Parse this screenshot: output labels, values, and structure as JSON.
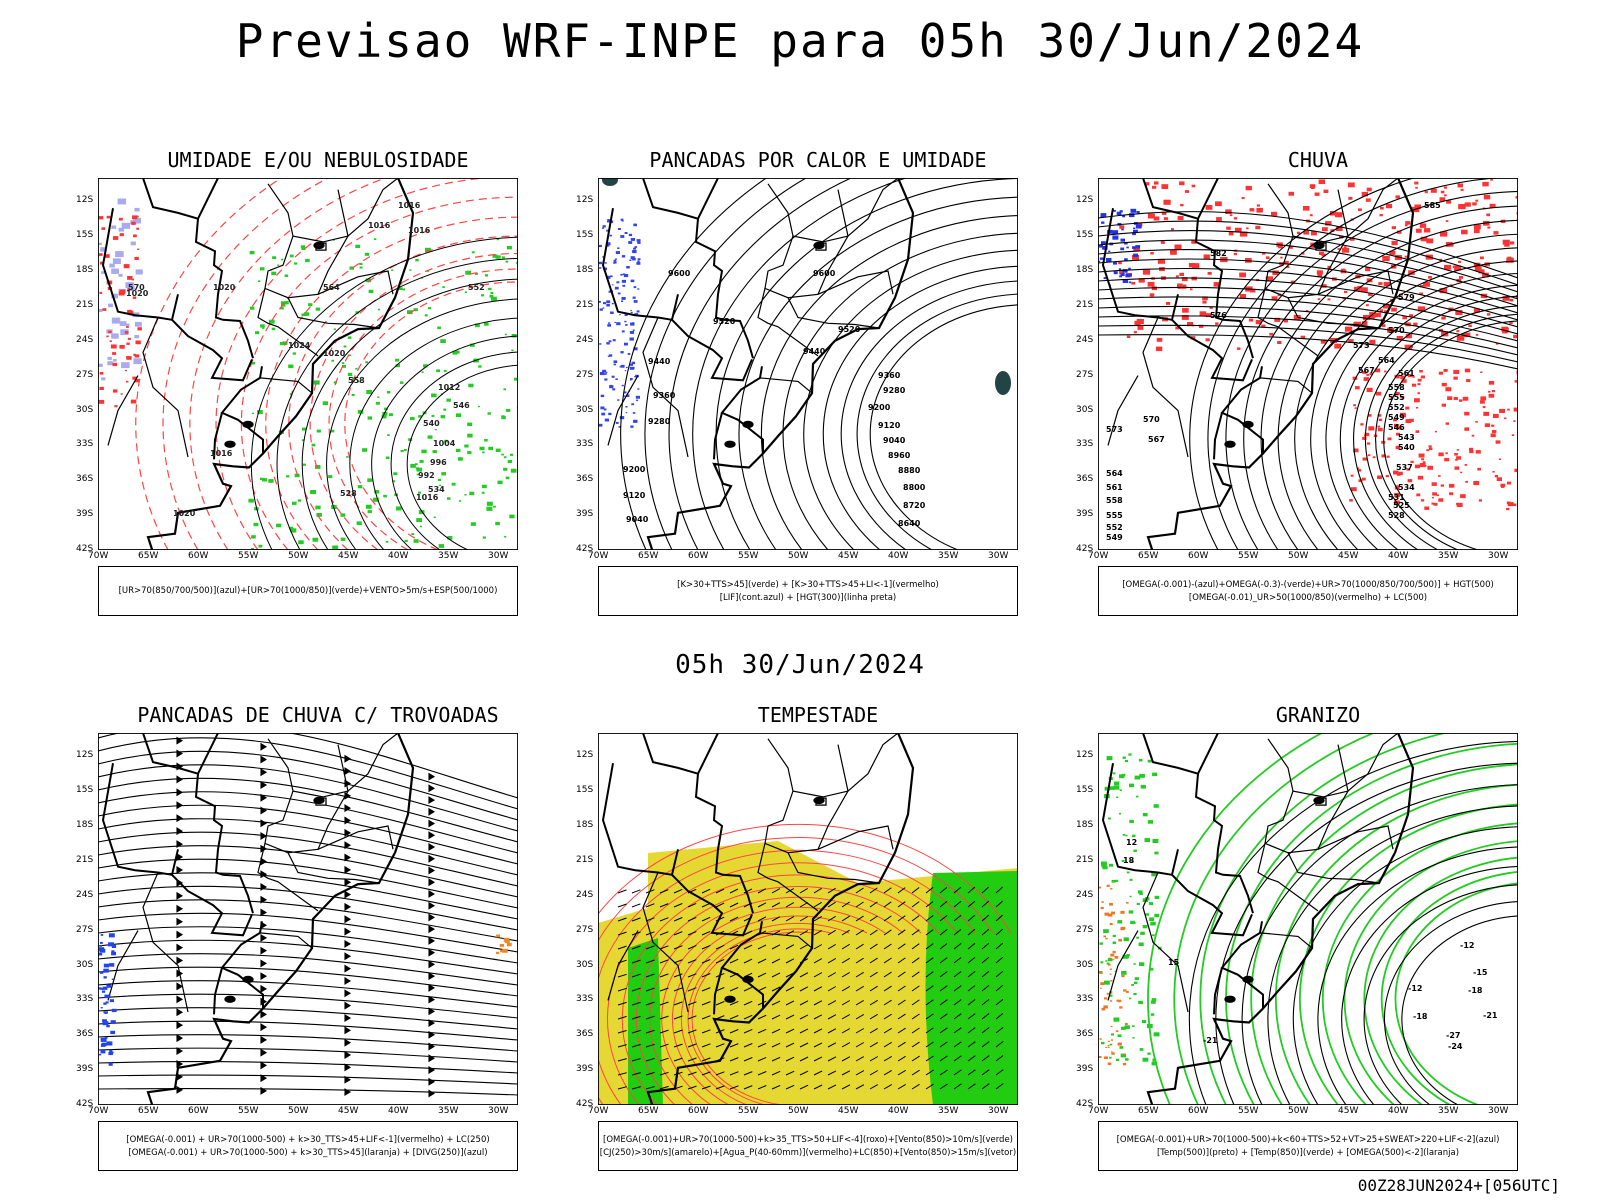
{
  "page": {
    "main_title": "Previsao WRF-INPE  para 05h 30/Jun/2024",
    "mid_title": "05h 30/Jun/2024",
    "footer": "00Z28JUN2024+[056UTC]"
  },
  "axes": {
    "lat_labels": [
      "12S",
      "15S",
      "18S",
      "21S",
      "24S",
      "27S",
      "30S",
      "33S",
      "36S",
      "39S",
      "42S"
    ],
    "lon_labels": [
      "70W",
      "65W",
      "60W",
      "55W",
      "50W",
      "45W",
      "40W",
      "35W",
      "30W"
    ]
  },
  "panels": [
    {
      "id": "umidade",
      "title": "UMIDADE E/OU NEBULOSIDADE",
      "legend": [
        "[UR>70(850/700/500)](azul)+[UR>70(1000/850)](verde)+VENTO>5m/s+ESP(500/1000)"
      ],
      "labels": [
        "1016",
        "1016",
        "1016",
        "1020",
        "1020",
        "1024",
        "1020",
        "1012",
        "1004",
        "996",
        "992",
        "1016",
        "1020",
        "1016",
        "570",
        "564",
        "558",
        "552",
        "546",
        "540",
        "534",
        "528"
      ],
      "colors": {
        "green": "#22cc22",
        "red": "#ff3333",
        "blue": "#aaaaee"
      }
    },
    {
      "id": "pancadas-calor",
      "title": "PANCADAS POR CALOR E UMIDADE",
      "legend": [
        "[K>30+TTS>45](verde) + [K>30+TTS>45+LI<-1](vermelho)",
        "[LIF](cont.azul) + [HGT(300)](linha preta)"
      ],
      "labels": [
        "9600",
        "9600",
        "9520",
        "9520",
        "9440",
        "9440",
        "9360",
        "9360",
        "9280",
        "9280",
        "9200",
        "9200",
        "9120",
        "9120",
        "9040",
        "9040",
        "8960",
        "8880",
        "8800",
        "8720",
        "8640"
      ],
      "colors": {
        "blue": "#3344ee",
        "teal": "#224444"
      }
    },
    {
      "id": "chuva",
      "title": "CHUVA",
      "legend": [
        "[OMEGA(-0.001)-(azul)+OMEGA(-0.3)-(verde)+UR>70(1000/850/700/500)] + HGT(500)",
        "[OMEGA(-0.01)_UR>50(1000/850)(vermelho) + LC(500)"
      ],
      "labels": [
        "585",
        "582",
        "579",
        "576",
        "573",
        "570",
        "567",
        "564",
        "561",
        "558",
        "555",
        "552",
        "549",
        "546",
        "543",
        "540",
        "537",
        "534",
        "531",
        "528",
        "525",
        "570",
        "567",
        "573",
        "564",
        "561",
        "558",
        "555",
        "552",
        "549"
      ],
      "colors": {
        "red": "#ff3333",
        "blue": "#2233ee"
      }
    },
    {
      "id": "trovoadas",
      "title": "PANCADAS DE CHUVA C/ TROVOADAS",
      "legend": [
        "[OMEGA(-0.001) + UR>70(1000-500) + k>30_TTS>45+LIF<-1](vermelho) + LC(250)",
        "[OMEGA(-0.001) + UR>70(1000-500) + k>30_TTS>45](laranja) + [DIVG(250)](azul)"
      ],
      "labels": [],
      "colors": {
        "blue": "#2244ee",
        "orange": "#ee8822"
      }
    },
    {
      "id": "tempestade",
      "title": "TEMPESTADE",
      "legend": [
        "[OMEGA(-0.001)+UR>70(1000-500)+k>35_TTS>50+LIF<-4](roxo)+[Vento(850)>10m/s](verde)",
        "[CJ(250)>30m/s](amarelo)+[Agua_P(40-60mm)](vermelho)+LC(850)+[Vento(850)>15m/s](vetor)"
      ],
      "labels": [],
      "colors": {
        "yellow": "#e6d832",
        "green": "#22cc11",
        "red": "#ff4444"
      }
    },
    {
      "id": "granizo",
      "title": "GRANIZO",
      "legend": [
        "[OMEGA(-0.001)+UR>70(1000-500)+k<60+TTS>52+VT>25+SWEAT>220+LIF<-2](azul)",
        "[Temp(500)](preto) + [Temp(850)](verde) + [OMEGA(500)<-2](laranja)"
      ],
      "labels": [
        "15",
        "18",
        "12",
        "-12",
        "-15",
        "-18",
        "-21",
        "-24",
        "-27",
        "-18",
        "-21",
        "-12"
      ],
      "colors": {
        "green": "#22cc22",
        "orange": "#ee7722"
      }
    }
  ]
}
